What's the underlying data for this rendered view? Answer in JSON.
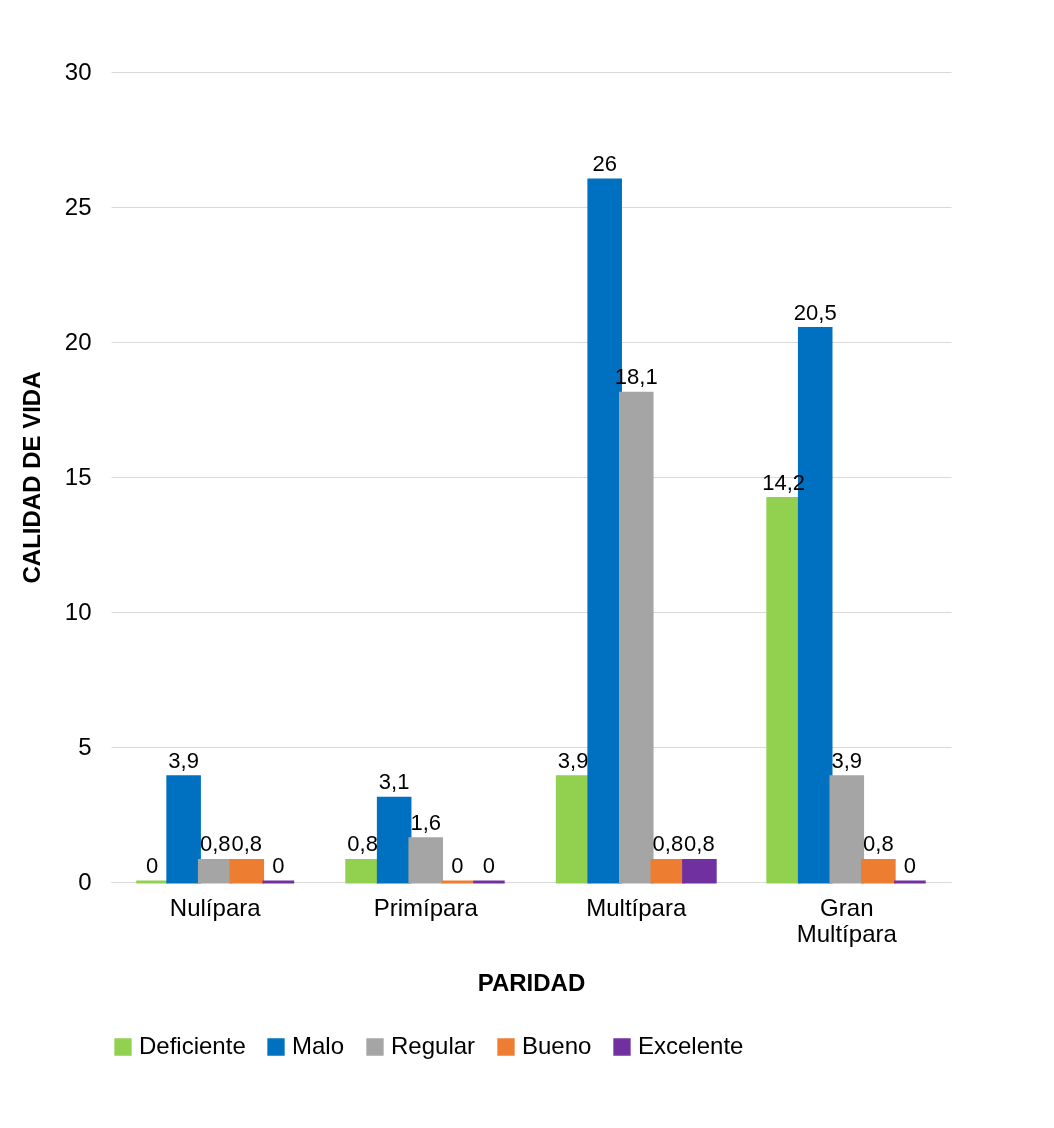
{
  "chart_data": {
    "type": "bar",
    "xlabel": "PARIDAD",
    "ylabel": "CALIDAD DE VIDA",
    "categories": [
      "Nulípara",
      "Primípara",
      "Multípara",
      "Gran Multípara"
    ],
    "series": [
      {
        "name": "Deficiente",
        "color": "#92d050",
        "values": [
          0,
          0.8,
          3.9,
          14.2
        ],
        "value_labels": [
          "0",
          "0,8",
          "3,9",
          "14,2"
        ]
      },
      {
        "name": "Malo",
        "color": "#0070c0",
        "values": [
          3.9,
          3.1,
          26,
          20.5
        ],
        "value_labels": [
          "3,9",
          "3,1",
          "26",
          "20,5"
        ]
      },
      {
        "name": "Regular",
        "color": "#a5a5a5",
        "values": [
          0.8,
          1.6,
          18.1,
          3.9
        ],
        "value_labels": [
          "0,8",
          "1,6",
          "18,1",
          "3,9"
        ]
      },
      {
        "name": "Bueno",
        "color": "#ed7d31",
        "values": [
          0.8,
          0,
          0.8,
          0.8
        ],
        "value_labels": [
          "0,8",
          "0",
          "0,8",
          "0,8"
        ]
      },
      {
        "name": "Excelente",
        "color": "#7030a0",
        "values": [
          0,
          0,
          0.8,
          0
        ],
        "value_labels": [
          "0",
          "0",
          "0,8",
          "0"
        ]
      }
    ],
    "ylim": [
      0,
      30
    ],
    "yticks": [
      0,
      5,
      10,
      15,
      20,
      25,
      30
    ],
    "grid": "y",
    "legend": "bottom"
  }
}
